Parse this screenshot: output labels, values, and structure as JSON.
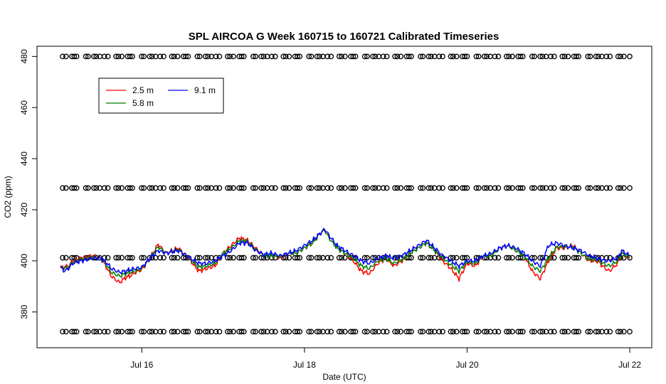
{
  "chart_data": {
    "type": "line",
    "title": "SPL AIRCOA G  Week 160715 to 160721  Calibrated Timeseries",
    "xlabel": "Date (UTC)",
    "ylabel": "CO2 (ppm)",
    "x_start": "Jul 15 00:00",
    "x_end": "Jul 22 00:00",
    "xlim": [
      "Jul 15 00:00",
      "Jul 22 00:00"
    ],
    "ylim": [
      366,
      484
    ],
    "x_tick_labels": [
      "Jul 16",
      "Jul 18",
      "Jul 20",
      "Jul 22"
    ],
    "y_ticks": [
      380,
      400,
      420,
      440,
      460,
      480
    ],
    "legend": {
      "placement": "top-left",
      "entries": [
        "2.5 m",
        "5.8 m",
        "9.1 m"
      ]
    },
    "grid": false,
    "series": [
      {
        "name": "2.5 m",
        "color": "#ff0000",
        "points": [
          [
            0,
            397.5
          ],
          [
            0.2,
            398
          ],
          [
            0.3,
            400
          ],
          [
            0.5,
            401
          ],
          [
            0.8,
            402
          ],
          [
            1.0,
            401
          ],
          [
            1.15,
            397
          ],
          [
            1.25,
            394
          ],
          [
            1.45,
            391.5
          ],
          [
            1.6,
            393.5
          ],
          [
            1.7,
            394
          ],
          [
            1.85,
            395.5
          ],
          [
            2.0,
            396.5
          ],
          [
            2.2,
            401
          ],
          [
            2.4,
            406.5
          ],
          [
            2.6,
            403
          ],
          [
            2.9,
            405
          ],
          [
            3.1,
            402
          ],
          [
            3.3,
            398
          ],
          [
            3.4,
            396
          ],
          [
            3.6,
            397
          ],
          [
            3.8,
            398
          ],
          [
            4.0,
            403
          ],
          [
            4.2,
            406
          ],
          [
            4.4,
            409
          ],
          [
            4.6,
            408
          ],
          [
            4.8,
            405
          ],
          [
            5.0,
            402
          ],
          [
            5.2,
            402
          ],
          [
            5.4,
            401
          ],
          [
            5.6,
            403
          ],
          [
            5.8,
            403
          ],
          [
            6.0,
            405
          ],
          [
            6.2,
            407
          ],
          [
            6.4,
            411
          ],
          [
            6.5,
            412
          ],
          [
            6.6,
            409
          ],
          [
            6.8,
            405
          ],
          [
            7.0,
            403
          ],
          [
            7.2,
            400
          ],
          [
            7.4,
            396
          ],
          [
            7.6,
            395
          ],
          [
            7.8,
            399
          ],
          [
            8.0,
            401
          ],
          [
            8.2,
            398
          ],
          [
            8.4,
            400
          ],
          [
            8.6,
            403
          ],
          [
            8.8,
            405
          ],
          [
            9.0,
            407
          ],
          [
            9.2,
            404
          ],
          [
            9.4,
            400
          ],
          [
            9.6,
            397
          ],
          [
            9.8,
            393
          ],
          [
            10.0,
            399
          ],
          [
            10.2,
            398
          ],
          [
            10.4,
            402
          ],
          [
            10.6,
            402
          ],
          [
            10.8,
            405
          ],
          [
            11.0,
            406
          ],
          [
            11.2,
            404
          ],
          [
            11.4,
            402
          ],
          [
            11.6,
            396
          ],
          [
            11.8,
            393
          ],
          [
            12.0,
            400
          ],
          [
            12.2,
            405
          ],
          [
            12.4,
            405
          ],
          [
            12.6,
            406
          ],
          [
            12.8,
            403
          ],
          [
            13.0,
            400
          ],
          [
            13.2,
            400
          ],
          [
            13.4,
            397
          ],
          [
            13.5,
            396
          ],
          [
            13.7,
            399
          ],
          [
            13.8,
            403
          ],
          [
            14.0,
            401
          ]
        ]
      },
      {
        "name": "5.8 m",
        "color": "#008000",
        "points": [
          [
            0,
            397
          ],
          [
            0.2,
            397.5
          ],
          [
            0.3,
            399.5
          ],
          [
            0.5,
            400.5
          ],
          [
            0.8,
            401.5
          ],
          [
            1.0,
            401
          ],
          [
            1.15,
            398
          ],
          [
            1.25,
            395.5
          ],
          [
            1.45,
            394
          ],
          [
            1.6,
            395
          ],
          [
            1.7,
            395.5
          ],
          [
            1.85,
            396
          ],
          [
            2.0,
            397
          ],
          [
            2.2,
            401
          ],
          [
            2.4,
            405.5
          ],
          [
            2.6,
            403
          ],
          [
            2.9,
            404.5
          ],
          [
            3.1,
            402
          ],
          [
            3.3,
            399
          ],
          [
            3.4,
            397.5
          ],
          [
            3.6,
            398
          ],
          [
            3.8,
            399
          ],
          [
            4.0,
            403
          ],
          [
            4.2,
            405
          ],
          [
            4.4,
            408
          ],
          [
            4.6,
            407.5
          ],
          [
            4.8,
            404.5
          ],
          [
            5.0,
            402
          ],
          [
            5.2,
            402
          ],
          [
            5.4,
            401.5
          ],
          [
            5.6,
            403
          ],
          [
            5.8,
            403
          ],
          [
            6.0,
            405
          ],
          [
            6.2,
            407
          ],
          [
            6.4,
            411
          ],
          [
            6.5,
            412
          ],
          [
            6.6,
            409
          ],
          [
            6.8,
            405
          ],
          [
            7.0,
            403
          ],
          [
            7.2,
            401
          ],
          [
            7.4,
            398
          ],
          [
            7.6,
            397
          ],
          [
            7.8,
            400
          ],
          [
            8.0,
            401
          ],
          [
            8.2,
            399
          ],
          [
            8.4,
            400.5
          ],
          [
            8.6,
            403
          ],
          [
            8.8,
            405
          ],
          [
            9.0,
            407
          ],
          [
            9.2,
            404
          ],
          [
            9.4,
            401
          ],
          [
            9.6,
            398.5
          ],
          [
            9.8,
            396
          ],
          [
            10.0,
            399.5
          ],
          [
            10.2,
            399
          ],
          [
            10.4,
            402
          ],
          [
            10.6,
            402
          ],
          [
            10.8,
            405
          ],
          [
            11.0,
            406
          ],
          [
            11.2,
            404
          ],
          [
            11.4,
            402
          ],
          [
            11.6,
            398
          ],
          [
            11.8,
            396
          ],
          [
            12.0,
            401
          ],
          [
            12.2,
            405.5
          ],
          [
            12.4,
            405.5
          ],
          [
            12.6,
            405.5
          ],
          [
            12.8,
            403
          ],
          [
            13.0,
            400.5
          ],
          [
            13.2,
            400.5
          ],
          [
            13.4,
            398.5
          ],
          [
            13.5,
            398
          ],
          [
            13.7,
            400
          ],
          [
            13.8,
            403
          ],
          [
            14.0,
            401.5
          ]
        ]
      },
      {
        "name": "9.1 m",
        "color": "#0000ff",
        "points": [
          [
            0,
            397.5
          ],
          [
            0.1,
            396
          ],
          [
            0.2,
            397
          ],
          [
            0.3,
            399
          ],
          [
            0.5,
            400
          ],
          [
            0.8,
            401
          ],
          [
            1.0,
            401
          ],
          [
            1.15,
            399
          ],
          [
            1.25,
            397
          ],
          [
            1.45,
            395.5
          ],
          [
            1.6,
            396
          ],
          [
            1.7,
            396.5
          ],
          [
            1.85,
            397
          ],
          [
            2.0,
            397.5
          ],
          [
            2.2,
            401
          ],
          [
            2.4,
            404
          ],
          [
            2.6,
            403
          ],
          [
            2.9,
            404
          ],
          [
            3.1,
            402
          ],
          [
            3.3,
            400
          ],
          [
            3.4,
            399
          ],
          [
            3.6,
            399
          ],
          [
            3.8,
            400
          ],
          [
            4.0,
            402
          ],
          [
            4.2,
            404
          ],
          [
            4.4,
            407
          ],
          [
            4.6,
            407
          ],
          [
            4.8,
            404
          ],
          [
            5.0,
            402.5
          ],
          [
            5.2,
            403
          ],
          [
            5.4,
            402
          ],
          [
            5.6,
            403
          ],
          [
            5.8,
            404
          ],
          [
            6.0,
            406
          ],
          [
            6.2,
            408
          ],
          [
            6.4,
            411
          ],
          [
            6.5,
            412.5
          ],
          [
            6.6,
            410
          ],
          [
            6.8,
            406
          ],
          [
            7.0,
            404
          ],
          [
            7.2,
            402
          ],
          [
            7.4,
            400
          ],
          [
            7.6,
            399
          ],
          [
            7.8,
            401
          ],
          [
            8.0,
            402
          ],
          [
            8.2,
            401
          ],
          [
            8.4,
            402
          ],
          [
            8.6,
            404
          ],
          [
            8.8,
            406
          ],
          [
            9.0,
            408
          ],
          [
            9.2,
            405
          ],
          [
            9.4,
            402
          ],
          [
            9.6,
            400
          ],
          [
            9.8,
            398
          ],
          [
            10.0,
            400
          ],
          [
            10.2,
            400
          ],
          [
            10.4,
            402
          ],
          [
            10.6,
            403
          ],
          [
            10.8,
            405
          ],
          [
            11.0,
            406
          ],
          [
            11.2,
            405
          ],
          [
            11.4,
            403
          ],
          [
            11.6,
            400
          ],
          [
            11.8,
            398
          ],
          [
            12.0,
            406
          ],
          [
            12.2,
            407
          ],
          [
            12.4,
            406
          ],
          [
            12.6,
            405
          ],
          [
            12.8,
            404
          ],
          [
            13.0,
            402
          ],
          [
            13.2,
            401
          ],
          [
            13.4,
            400
          ],
          [
            13.5,
            400
          ],
          [
            13.7,
            401
          ],
          [
            13.8,
            404
          ],
          [
            14.0,
            402
          ]
        ]
      },
      {
        "name": "",
        "type": "scatter",
        "color": "#000000",
        "levels": [
          480,
          428.5,
          401.2,
          372.3
        ]
      }
    ]
  }
}
